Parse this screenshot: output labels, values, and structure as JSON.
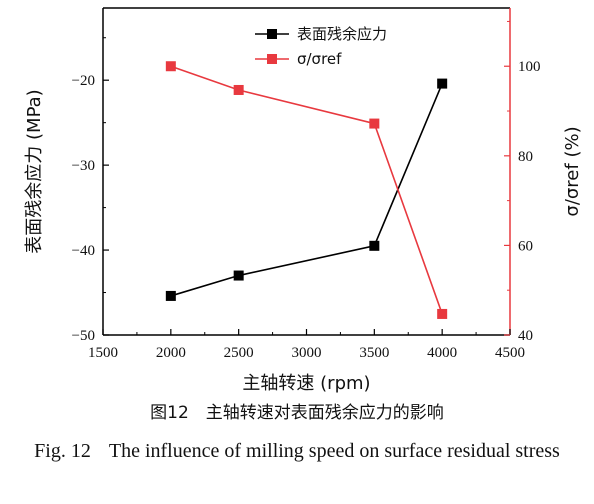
{
  "chart_data": {
    "type": "line",
    "x": [
      2000,
      2500,
      3500,
      4000
    ],
    "xlabel": "主轴转速 (rpm)",
    "xlim": [
      1500,
      4500
    ],
    "xticks": [
      1500,
      2000,
      2500,
      3000,
      3500,
      4000,
      4500
    ],
    "ylabel_left": "表面残余应力 (MPa)",
    "ylim_left": [
      -50,
      -11.5
    ],
    "yticks_left": [
      -50,
      -40,
      -30,
      -20
    ],
    "ylabel_right": "σ/σref (%)",
    "ylim_right": [
      40,
      113
    ],
    "yticks_right": [
      40,
      60,
      80,
      100
    ],
    "series": [
      {
        "name": "表面残余应力",
        "axis": "left",
        "color": "#000000",
        "values": [
          -45.4,
          -43.0,
          -39.5,
          -20.4
        ]
      },
      {
        "name": "σ/σref",
        "axis": "right",
        "color": "#e8393f",
        "values": [
          100,
          94.7,
          87.2,
          44.7
        ]
      }
    ],
    "legend_position": "top-center",
    "right_axis_color": "#e8393f"
  },
  "caption": {
    "cn": "图12　主轴转速对表面残余应力的影响",
    "en_number": "Fig. 12",
    "en_text": "The influence of milling speed on surface residual stress"
  }
}
